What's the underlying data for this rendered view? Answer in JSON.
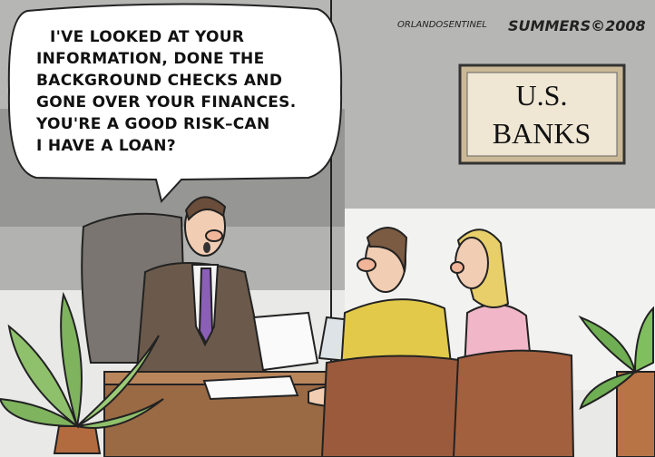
{
  "speech_bubble": {
    "lines": [
      "I'VE LOOKED AT YOUR",
      "INFORMATION, DONE THE",
      "BACKGROUND CHECKS AND",
      "GONE OVER YOUR FINANCES.",
      "YOU'RE A GOOD RISK–CAN",
      "I HAVE A LOAN?"
    ]
  },
  "sign": {
    "lines": [
      "U.S.",
      "BANKS"
    ]
  },
  "credit": {
    "publication": "ORLANDOSENTINEL",
    "signature": "SUMMERS©2008"
  }
}
